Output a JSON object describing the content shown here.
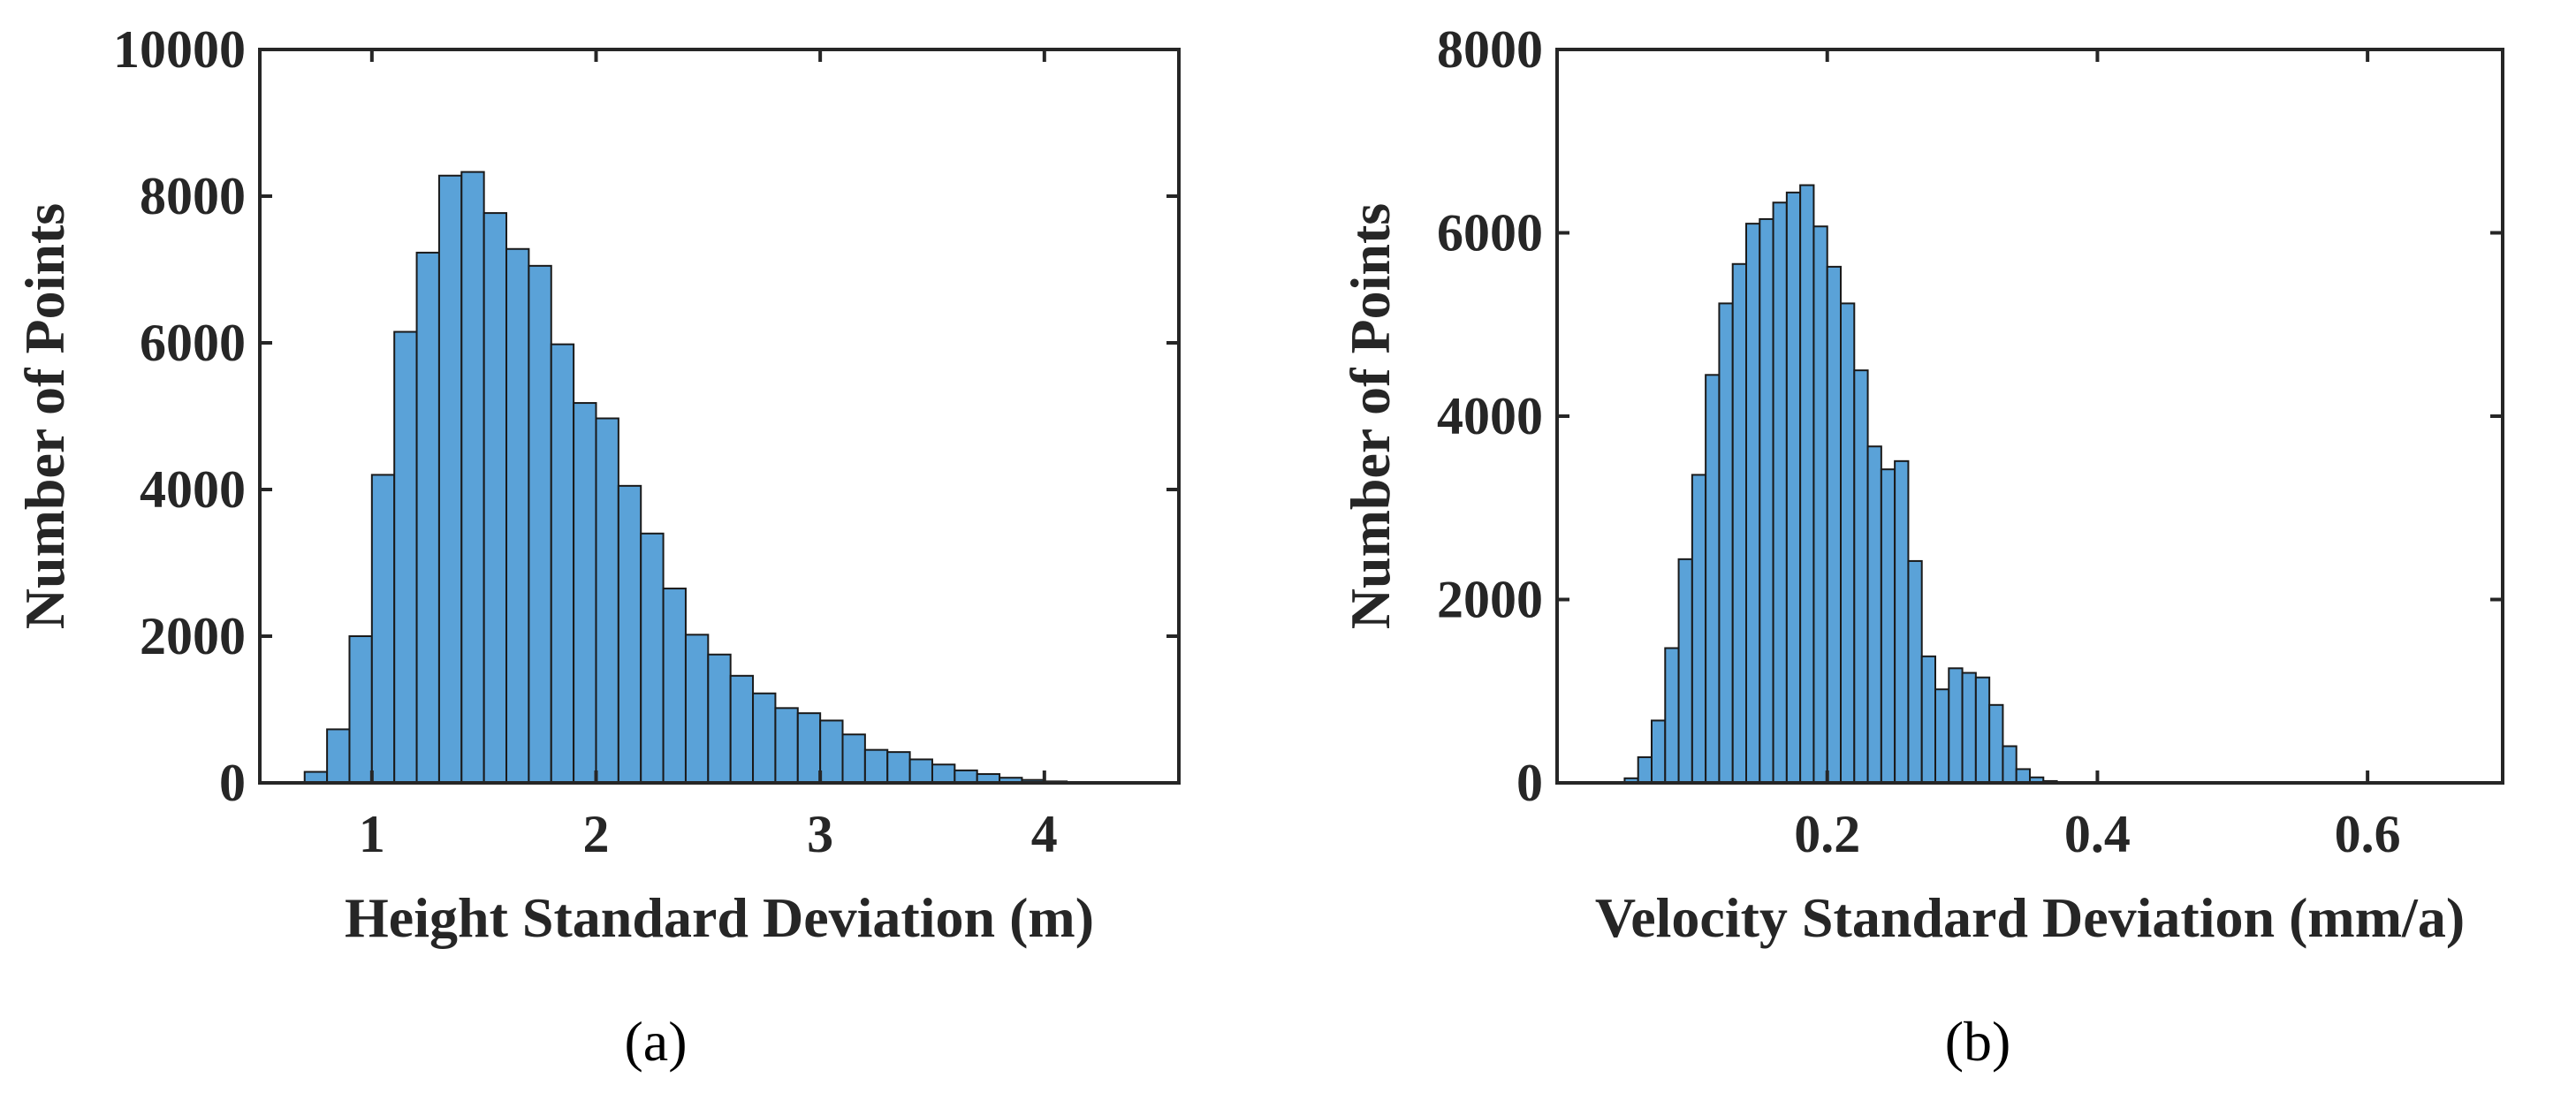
{
  "chart_data": [
    {
      "type": "bar",
      "panel_label": "(a)",
      "xlabel": "Height Standard Deviation (m)",
      "ylabel": "Number of Points",
      "xlim": [
        0.5,
        4.6
      ],
      "ylim": [
        0,
        10000
      ],
      "xticks": [
        1,
        2,
        3,
        4
      ],
      "xtick_labels": [
        "1",
        "2",
        "3",
        "4"
      ],
      "yticks": [
        0,
        2000,
        4000,
        6000,
        8000,
        10000
      ],
      "ytick_labels": [
        "0",
        "2000",
        "4000",
        "6000",
        "8000",
        "10000"
      ],
      "bin_start": 0.7,
      "bin_width": 0.1,
      "values": [
        150,
        730,
        2000,
        4200,
        6150,
        7230,
        8280,
        8330,
        7770,
        7280,
        7050,
        5980,
        5180,
        4970,
        4050,
        3400,
        2650,
        2020,
        1750,
        1460,
        1220,
        1020,
        950,
        850,
        660,
        450,
        420,
        320,
        250,
        170,
        120,
        70,
        40,
        20,
        10
      ],
      "bar_color": "#5aa2d8"
    },
    {
      "type": "bar",
      "panel_label": "(b)",
      "xlabel": "Velocity Standard Deviation (mm/a)",
      "ylabel": "Number of Points",
      "xlim": [
        0.0,
        0.7
      ],
      "ylim": [
        0,
        8000
      ],
      "xticks": [
        0.2,
        0.4,
        0.6
      ],
      "xtick_labels": [
        "0.2",
        "0.4",
        "0.6"
      ],
      "yticks": [
        0,
        2000,
        4000,
        6000,
        8000
      ],
      "ytick_labels": [
        "0",
        "2000",
        "4000",
        "6000",
        "8000"
      ],
      "bin_start": 0.05,
      "bin_width": 0.01,
      "values": [
        50,
        280,
        680,
        1470,
        2440,
        3360,
        4450,
        5230,
        5660,
        6100,
        6150,
        6330,
        6440,
        6520,
        6070,
        5630,
        5230,
        4500,
        3670,
        3420,
        3510,
        2420,
        1380,
        1020,
        1250,
        1200,
        1150,
        850,
        400,
        150,
        60,
        20
      ],
      "bar_color": "#5aa2d8"
    }
  ]
}
